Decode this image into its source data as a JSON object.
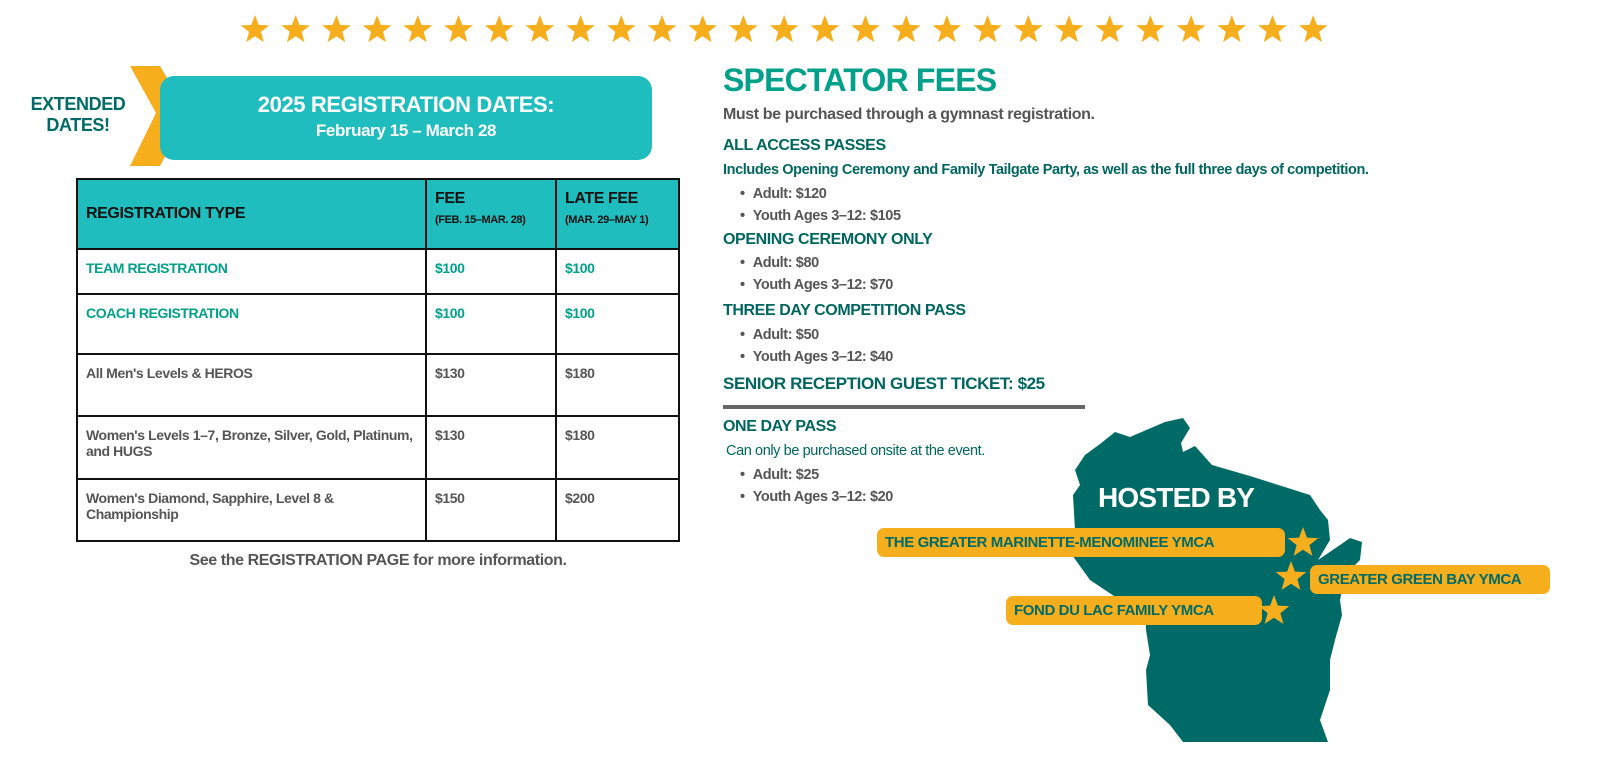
{
  "colors": {
    "accent_teal": "#20bdbf",
    "dark_teal": "#006b66",
    "green": "#00a08a",
    "gold": "#f7ae1d",
    "gray": "#555555"
  },
  "decor": {
    "star_count": 27,
    "star_icon": "star-icon"
  },
  "banner": {
    "extended": "EXTENDED DATES!",
    "title": "2025 REGISTRATION DATES:",
    "dates": "February 15 – March 28"
  },
  "table": {
    "headers": {
      "type": "REGISTRATION TYPE",
      "fee": "FEE",
      "fee_sub": "(FEB. 15–MAR. 28)",
      "late": "LATE FEE",
      "late_sub": "(MAR. 29–MAY 1)"
    },
    "rows": [
      {
        "type": "TEAM REGISTRATION",
        "fee": "$100",
        "late": "$100"
      },
      {
        "type": "COACH REGISTRATION",
        "fee": "$100",
        "late": "$100"
      },
      {
        "type": "All Men's Levels & HEROS",
        "fee": "$130",
        "late": "$180"
      },
      {
        "type": "Women's Levels 1–7, Bronze, Silver, Gold, Platinum, and HUGS",
        "fee": "$130",
        "late": "$180"
      },
      {
        "type": "Women's Diamond, Sapphire, Level 8 & Championship",
        "fee": "$150",
        "late": "$200"
      }
    ],
    "note": "See the REGISTRATION PAGE for more information."
  },
  "spectator": {
    "title": "SPECTATOR FEES",
    "subtitle": "Must be purchased through a gymnast registration.",
    "all_access": {
      "title": "ALL ACCESS PASSES",
      "desc": "Includes Opening Ceremony and Family Tailgate Party, as well as the full three days of competition.",
      "items": [
        "Adult: $120",
        "Youth Ages 3–12: $105"
      ]
    },
    "opening": {
      "title": "OPENING CEREMONY ONLY",
      "items": [
        "Adult: $80",
        "Youth Ages 3–12: $70"
      ]
    },
    "three_day": {
      "title": "THREE DAY COMPETITION PASS",
      "items": [
        "Adult: $50",
        "Youth Ages 3–12: $40"
      ]
    },
    "senior": "SENIOR RECEPTION GUEST TICKET: $25",
    "one_day": {
      "title": "ONE DAY PASS",
      "desc": "Can only be purchased onsite at the event.",
      "items": [
        "Adult: $25",
        "Youth Ages 3–12: $20"
      ]
    }
  },
  "hosted": {
    "title": "HOSTED BY",
    "hosts": [
      "THE GREATER MARINETTE-MENOMINEE YMCA",
      "GREATER GREEN BAY YMCA",
      "FOND DU LAC FAMILY YMCA"
    ]
  }
}
